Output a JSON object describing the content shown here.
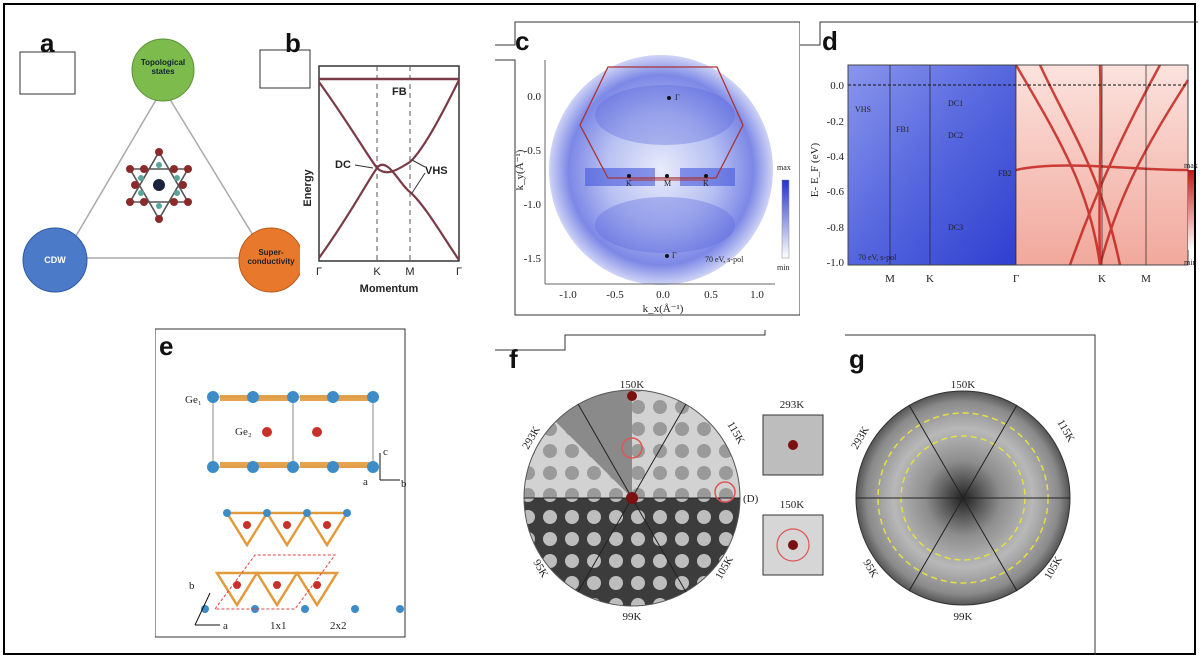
{
  "panels": {
    "a": {
      "label": "a",
      "nodes": {
        "top": "Topological states",
        "left": "CDW",
        "right": "Super-conductivity"
      }
    },
    "b": {
      "label": "b",
      "ylabel": "Energy",
      "xlabel": "Momentum",
      "xticks": [
        "Γ",
        "K",
        "M",
        "Γ"
      ],
      "annotations": {
        "fb": "FB",
        "dc": "DC",
        "vhs": "VHS"
      }
    },
    "c": {
      "label": "c",
      "ylabel": "k_y(Å⁻¹)",
      "xlabel": "k_x(Å⁻¹)",
      "xticks": [
        "-1.0",
        "-0.5",
        "0.0",
        "0.5",
        "1.0"
      ],
      "yticks": [
        "0.0",
        "-0.5",
        "-1.0",
        "-1.5"
      ],
      "points": [
        "Γ",
        "K",
        "M",
        "K",
        "Γ"
      ],
      "note": "70 eV, s-pol",
      "cbar": {
        "max": "max",
        "min": "min"
      }
    },
    "d": {
      "label": "d",
      "ylabel": "E- E_F (eV)",
      "yticks": [
        "0.0",
        "-0.2",
        "-0.4",
        "-0.6",
        "-0.8",
        "-1.0"
      ],
      "xticks": [
        "M",
        "K",
        "Γ",
        "K",
        "M"
      ],
      "bands": [
        "VHS",
        "FB1",
        "DC1",
        "DC2",
        "FB2",
        "DC3"
      ],
      "note": "70 eV, s-pol",
      "cbar": {
        "max": "max",
        "min": "min"
      }
    },
    "e": {
      "label": "e",
      "atoms": [
        "Ge₁",
        "Ge₂"
      ],
      "axes": [
        "c",
        "a",
        "b",
        "b",
        "a"
      ],
      "cells": [
        "1x1",
        "2x2"
      ]
    },
    "f": {
      "label": "f",
      "temps": [
        "150K",
        "115K",
        "293K",
        "99K",
        "105K",
        "95K"
      ],
      "marker": "(D)",
      "insets": [
        "293K",
        "150K"
      ]
    },
    "g": {
      "label": "g",
      "temps": [
        "150K",
        "115K",
        "293K",
        "99K",
        "105K",
        "95K"
      ]
    }
  },
  "colors": {
    "green": "#7cbb4c",
    "blue": "#4a7ac8",
    "orange": "#e8782b",
    "band": "#7a3b46",
    "arpes": "#3b4fd8",
    "red": "#d22a1e"
  }
}
